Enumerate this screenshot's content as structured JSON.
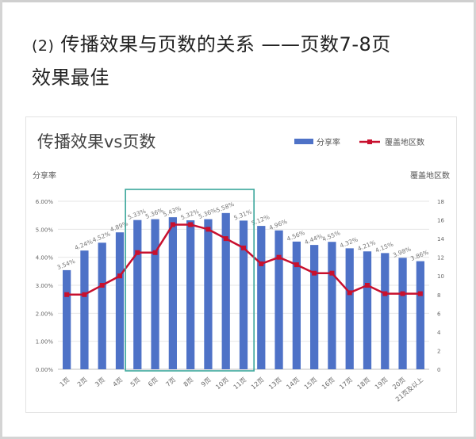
{
  "page": {
    "heading_num": "(2)",
    "heading_line1": "传播效果与页数的关系 ——页数7-8页",
    "heading_line2": "效果最佳"
  },
  "colors": {
    "bar": "#4e72c7",
    "line": "#c8102e",
    "highlight": "#3aa69b",
    "frame": "#d4d4d4"
  },
  "chart_data": {
    "type": "bar",
    "title": "传播效果vs页数",
    "ylabel": "分享率",
    "y2label": "覆盖地区数",
    "categories": [
      "1页",
      "2页",
      "3页",
      "4页",
      "5页",
      "6页",
      "7页",
      "8页",
      "9页",
      "10页",
      "11页",
      "12页",
      "13页",
      "14页",
      "15页",
      "16页",
      "17页",
      "18页",
      "19页",
      "20页",
      "21页及以上"
    ],
    "yticks": [
      "0.00%",
      "1.00%",
      "2.00%",
      "3.00%",
      "4.00%",
      "5.00%",
      "6.00%"
    ],
    "y2ticks": [
      "0",
      "2",
      "4",
      "6",
      "8",
      "10",
      "12",
      "14",
      "16",
      "18"
    ],
    "ylim": [
      0,
      6
    ],
    "y2lim": [
      0,
      18
    ],
    "series": [
      {
        "name": "分享率",
        "type": "bar",
        "axis": "left",
        "values": [
          3.54,
          4.24,
          4.52,
          4.89,
          5.33,
          5.36,
          5.43,
          5.32,
          5.36,
          5.58,
          5.31,
          5.12,
          4.96,
          4.56,
          4.44,
          4.55,
          4.32,
          4.21,
          4.15,
          3.98,
          3.86
        ],
        "labels": [
          "3.54%",
          "4.24%",
          "4.52%",
          "4.89%",
          "5.33%",
          "5.36%",
          "5.43%",
          "5.32%",
          "5.36%",
          "5.58%",
          "5.31%",
          "5.12%",
          "4.96%",
          "4.56%",
          "4.44%",
          "4.55%",
          "4.32%",
          "4.21%",
          "4.15%",
          "3.98%",
          "3.86%"
        ]
      },
      {
        "name": "覆盖地区数",
        "type": "line",
        "axis": "right",
        "values": [
          8,
          8,
          9,
          10,
          12.5,
          12.5,
          15.5,
          15.5,
          15,
          14,
          13,
          11.3,
          12,
          11.2,
          10.3,
          10.3,
          8.2,
          9,
          8.1,
          8.1,
          8.1
        ]
      }
    ],
    "highlight_range": [
      "5页",
      "11页"
    ],
    "grid": true,
    "legend_position": "top-right"
  }
}
